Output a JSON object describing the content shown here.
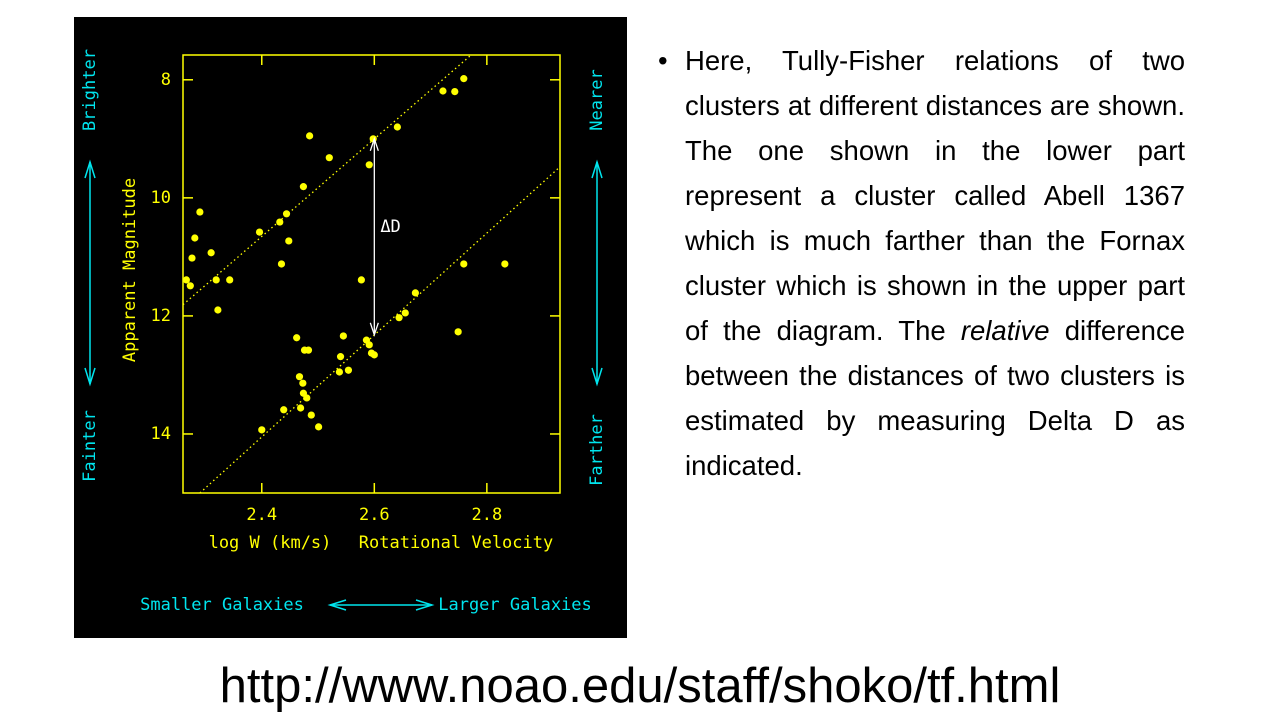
{
  "chart_data": {
    "type": "scatter",
    "xlabel": "log W (km/s)",
    "xlabel_note": "Rotational Velocity",
    "ylabel": "Apparent Magnitude",
    "left_labels": [
      "Brighter",
      "Fainter"
    ],
    "right_labels": [
      "Nearer",
      "Farther"
    ],
    "bottom_labels": [
      "Smaller Galaxies",
      "Larger Galaxies"
    ],
    "xlim": [
      2.26,
      2.93
    ],
    "ylim": [
      15,
      7.58
    ],
    "xticks": [
      2.4,
      2.6,
      2.8
    ],
    "yticks": [
      8,
      10,
      12,
      14
    ],
    "color": "#ffff00",
    "side_color": "#00e5ee",
    "x": [
      2.266,
      2.273,
      2.276,
      2.281,
      2.29,
      2.31,
      2.319,
      2.322,
      2.343,
      2.396,
      2.432,
      2.435,
      2.444,
      2.448,
      2.474,
      2.485,
      2.52,
      2.591,
      2.598,
      2.641,
      2.722,
      2.743,
      2.759,
      2.462,
      2.467,
      2.473,
      2.476,
      2.483,
      2.474,
      2.48,
      2.469,
      2.439,
      2.4,
      2.488,
      2.501,
      2.538,
      2.545,
      2.54,
      2.554,
      2.577,
      2.586,
      2.591,
      2.595,
      2.6,
      2.644,
      2.655,
      2.673,
      2.759,
      2.832,
      2.749
    ],
    "values": [
      11.39,
      11.49,
      11.02,
      10.68,
      10.24,
      10.93,
      11.39,
      11.9,
      11.39,
      10.58,
      10.41,
      11.12,
      10.27,
      10.73,
      9.81,
      8.95,
      9.32,
      9.44,
      9.0,
      8.8,
      8.19,
      8.2,
      7.98,
      12.37,
      13.03,
      13.14,
      12.58,
      12.58,
      13.31,
      13.39,
      13.56,
      13.59,
      13.93,
      13.68,
      13.88,
      12.95,
      12.34,
      12.69,
      12.92,
      11.39,
      12.41,
      12.49,
      12.63,
      12.66,
      12.03,
      11.95,
      11.61,
      11.12,
      11.12,
      12.27
    ],
    "trend_lines": [
      {
        "x": [
          2.26,
          2.772
        ],
        "y": [
          11.81,
          7.58
        ]
      },
      {
        "x": [
          2.29,
          2.927
        ],
        "y": [
          15,
          9.5
        ]
      }
    ],
    "annotation": {
      "text": "ΔD",
      "x": 2.6,
      "y": [
        9.0,
        12.32
      ]
    }
  },
  "bullet": [
    "Here, Tully-Fisher relations of two clusters at different distances are shown. The one shown in the lower part represent a cluster called Abell 1367 which is much farther than the Fornax cluster which is shown in the upper part of the diagram. The ",
    "relative",
    " difference between the distances of two clusters is estimated by measuring Delta D as indicated."
  ],
  "url": "http://www.noao.edu/staff/shoko/tf.html"
}
